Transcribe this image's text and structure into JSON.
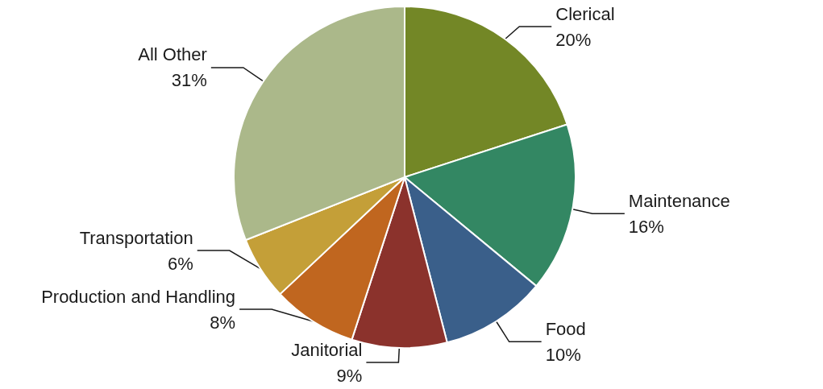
{
  "chart_data": {
    "type": "pie",
    "categories": [
      "Clerical",
      "Maintenance",
      "Food",
      "Janitorial",
      "Production and Handling",
      "Transportation",
      "All Other"
    ],
    "values": [
      20,
      16,
      10,
      9,
      8,
      6,
      31
    ],
    "value_labels": [
      "20%",
      "16%",
      "10%",
      "9%",
      "8%",
      "6%",
      "31%"
    ],
    "colors": [
      "#738726",
      "#338763",
      "#3a5f8a",
      "#8b322c",
      "#c0661f",
      "#c49f38",
      "#abb88a"
    ],
    "legend": false
  }
}
